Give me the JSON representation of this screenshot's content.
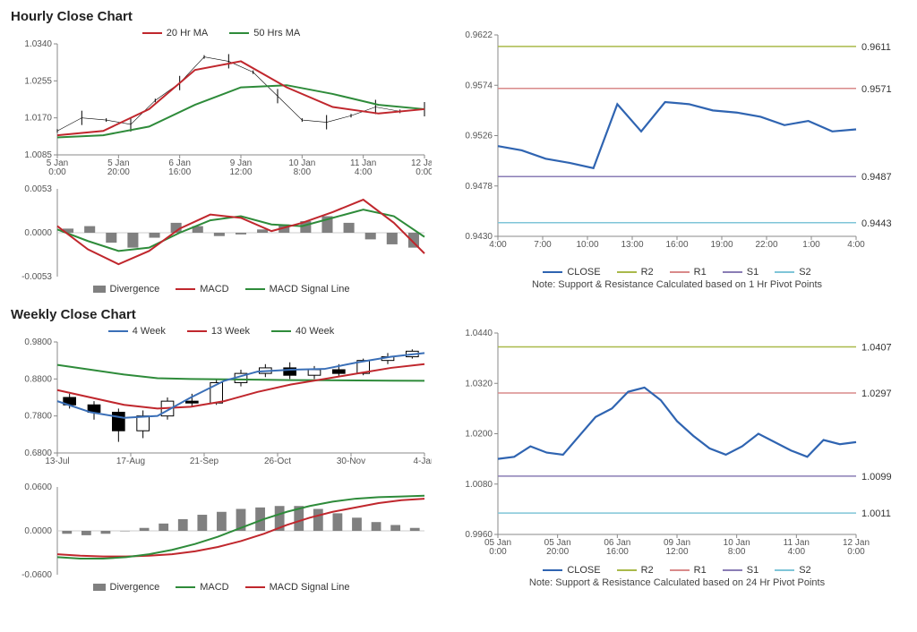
{
  "hourly": {
    "title": "Hourly Close Chart",
    "top_legend": [
      {
        "label": "20 Hr MA",
        "color": "#c0272d",
        "type": "line"
      },
      {
        "label": "50 Hrs MA",
        "color": "#2e8b3a",
        "type": "line"
      }
    ],
    "price_chart": {
      "type": "line-candle",
      "ylim": [
        1.0085,
        1.034
      ],
      "yticks": [
        1.0085,
        1.017,
        1.0255,
        1.034
      ],
      "xlabels": [
        "5 Jan\n0:00",
        "5 Jan\n20:00",
        "6 Jan\n16:00",
        "9 Jan\n12:00",
        "10 Jan\n8:00",
        "11 Jan\n4:00",
        "12 Jan\n0:00"
      ],
      "ma20_color": "#c0272d",
      "ma50_color": "#2e8b3a",
      "price_color": "#000000",
      "ma20": [
        1.013,
        1.014,
        1.019,
        1.028,
        1.03,
        1.024,
        1.0195,
        1.018,
        1.019
      ],
      "ma50": [
        1.0125,
        1.013,
        1.015,
        1.02,
        1.024,
        1.0245,
        1.0225,
        1.02,
        1.019
      ],
      "price_pts": [
        1.014,
        1.017,
        1.0165,
        1.0155,
        1.021,
        1.025,
        1.031,
        1.03,
        1.0275,
        1.022,
        1.0165,
        1.016,
        1.0175,
        1.0195,
        1.0185,
        1.019
      ]
    },
    "macd": {
      "type": "macd",
      "ylim": [
        -0.0053,
        0.0053
      ],
      "yticks": [
        -0.0053,
        0.0,
        0.0053
      ],
      "div_color": "#808080",
      "macd_color": "#c0272d",
      "signal_color": "#2e8b3a",
      "divergence": [
        0.0005,
        0.0008,
        -0.0012,
        -0.0018,
        -0.0006,
        0.0012,
        0.0008,
        -0.0004,
        -0.0002,
        0.0004,
        0.001,
        0.0014,
        0.002,
        0.0012,
        -0.0008,
        -0.0014,
        -0.0018
      ],
      "macd": [
        0.0008,
        -0.002,
        -0.0038,
        -0.0022,
        0.0005,
        0.0022,
        0.0018,
        0.0002,
        0.0012,
        0.0025,
        0.004,
        0.0012,
        -0.0025
      ],
      "signal": [
        0.0004,
        -0.001,
        -0.0022,
        -0.0018,
        0.0,
        0.0015,
        0.002,
        0.001,
        0.0008,
        0.0018,
        0.0028,
        0.002,
        -0.0005
      ],
      "legend": [
        {
          "label": "Divergence",
          "color": "#808080",
          "type": "box"
        },
        {
          "label": "MACD",
          "color": "#c0272d",
          "type": "line"
        },
        {
          "label": "MACD Signal Line",
          "color": "#2e8b3a",
          "type": "line"
        }
      ]
    },
    "sr_chart": {
      "type": "line-sr",
      "ylim": [
        0.943,
        0.9622
      ],
      "yticks": [
        0.943,
        0.9478,
        0.9526,
        0.9574,
        0.9622
      ],
      "xlabels": [
        "4:00",
        "7:00",
        "10:00",
        "13:00",
        "16:00",
        "19:00",
        "22:00",
        "1:00",
        "4:00"
      ],
      "close_color": "#2f64b1",
      "r2": {
        "val": 0.9611,
        "color": "#a9b94a"
      },
      "r1": {
        "val": 0.9571,
        "color": "#d98a8a"
      },
      "s1": {
        "val": 0.9487,
        "color": "#8a7db5"
      },
      "s2": {
        "val": 0.9443,
        "color": "#7fc5d8"
      },
      "close": [
        0.9516,
        0.9512,
        0.9504,
        0.95,
        0.9495,
        0.9556,
        0.953,
        0.9558,
        0.9556,
        0.955,
        0.9548,
        0.9544,
        0.9536,
        0.954,
        0.953,
        0.9532
      ],
      "legend": [
        {
          "label": "CLOSE",
          "color": "#2f64b1",
          "type": "line"
        },
        {
          "label": "R2",
          "color": "#a9b94a",
          "type": "line"
        },
        {
          "label": "R1",
          "color": "#d98a8a",
          "type": "line"
        },
        {
          "label": "S1",
          "color": "#8a7db5",
          "type": "line"
        },
        {
          "label": "S2",
          "color": "#7fc5d8",
          "type": "line"
        }
      ],
      "note": "Note: Support & Resistance Calculated based on 1 Hr Pivot Points"
    }
  },
  "weekly": {
    "title": "Weekly Close Chart",
    "top_legend": [
      {
        "label": "4 Week",
        "color": "#3a6fb7",
        "type": "line"
      },
      {
        "label": "13 Week",
        "color": "#c0272d",
        "type": "line"
      },
      {
        "label": "40 Week",
        "color": "#2e8b3a",
        "type": "line"
      }
    ],
    "price_chart": {
      "type": "candle-ma",
      "ylim": [
        0.68,
        0.98
      ],
      "yticks": [
        0.68,
        0.78,
        0.88,
        0.98
      ],
      "xlabels": [
        "13-Jul",
        "17-Aug",
        "21-Sep",
        "26-Oct",
        "30-Nov",
        "4-Jan"
      ],
      "ma4_color": "#3a6fb7",
      "ma13_color": "#c0272d",
      "ma40_color": "#2e8b3a",
      "candle_color": "#000000",
      "ma4": [
        0.82,
        0.79,
        0.775,
        0.78,
        0.83,
        0.875,
        0.9,
        0.905,
        0.907,
        0.925,
        0.94,
        0.95
      ],
      "ma13": [
        0.85,
        0.83,
        0.81,
        0.8,
        0.805,
        0.82,
        0.845,
        0.865,
        0.88,
        0.895,
        0.91,
        0.92
      ],
      "ma40": [
        0.918,
        0.905,
        0.892,
        0.882,
        0.88,
        0.879,
        0.878,
        0.877,
        0.8765,
        0.876,
        0.8755,
        0.875
      ],
      "candles": [
        {
          "o": 0.83,
          "c": 0.81,
          "h": 0.84,
          "l": 0.8
        },
        {
          "o": 0.81,
          "c": 0.79,
          "h": 0.82,
          "l": 0.77
        },
        {
          "o": 0.79,
          "c": 0.74,
          "h": 0.8,
          "l": 0.71
        },
        {
          "o": 0.74,
          "c": 0.78,
          "h": 0.795,
          "l": 0.72
        },
        {
          "o": 0.78,
          "c": 0.82,
          "h": 0.83,
          "l": 0.77
        },
        {
          "o": 0.82,
          "c": 0.815,
          "h": 0.84,
          "l": 0.805
        },
        {
          "o": 0.815,
          "c": 0.87,
          "h": 0.88,
          "l": 0.81
        },
        {
          "o": 0.87,
          "c": 0.895,
          "h": 0.905,
          "l": 0.86
        },
        {
          "o": 0.895,
          "c": 0.91,
          "h": 0.92,
          "l": 0.885
        },
        {
          "o": 0.91,
          "c": 0.89,
          "h": 0.925,
          "l": 0.88
        },
        {
          "o": 0.89,
          "c": 0.905,
          "h": 0.915,
          "l": 0.88
        },
        {
          "o": 0.905,
          "c": 0.895,
          "h": 0.92,
          "l": 0.885
        },
        {
          "o": 0.895,
          "c": 0.93,
          "h": 0.935,
          "l": 0.89
        },
        {
          "o": 0.93,
          "c": 0.94,
          "h": 0.95,
          "l": 0.92
        },
        {
          "o": 0.94,
          "c": 0.955,
          "h": 0.96,
          "l": 0.935
        }
      ]
    },
    "macd": {
      "type": "macd",
      "ylim": [
        -0.06,
        0.06
      ],
      "yticks": [
        -0.06,
        0.0,
        0.06
      ],
      "div_color": "#808080",
      "macd_color": "#2e8b3a",
      "signal_color": "#c0272d",
      "divergence": [
        -0.004,
        -0.006,
        -0.004,
        0.0,
        0.004,
        0.01,
        0.016,
        0.022,
        0.026,
        0.03,
        0.032,
        0.034,
        0.034,
        0.03,
        0.024,
        0.018,
        0.012,
        0.008,
        0.004
      ],
      "macd": [
        -0.036,
        -0.038,
        -0.038,
        -0.036,
        -0.032,
        -0.026,
        -0.018,
        -0.008,
        0.004,
        0.016,
        0.026,
        0.034,
        0.04,
        0.044,
        0.046,
        0.047,
        0.048
      ],
      "signal": [
        -0.032,
        -0.034,
        -0.035,
        -0.035,
        -0.034,
        -0.032,
        -0.028,
        -0.022,
        -0.014,
        -0.004,
        0.008,
        0.018,
        0.026,
        0.032,
        0.038,
        0.042,
        0.044
      ],
      "legend": [
        {
          "label": "Divergence",
          "color": "#808080",
          "type": "box"
        },
        {
          "label": "MACD",
          "color": "#2e8b3a",
          "type": "line"
        },
        {
          "label": "MACD Signal Line",
          "color": "#c0272d",
          "type": "line"
        }
      ]
    },
    "sr_chart": {
      "type": "line-sr",
      "ylim": [
        0.996,
        1.044
      ],
      "yticks": [
        0.996,
        1.008,
        1.02,
        1.032,
        1.044
      ],
      "xlabels": [
        "05 Jan\n0:00",
        "05 Jan\n20:00",
        "06 Jan\n16:00",
        "09 Jan\n12:00",
        "10 Jan\n8:00",
        "11 Jan\n4:00",
        "12 Jan\n0:00"
      ],
      "close_color": "#2f64b1",
      "r2": {
        "val": 1.0407,
        "color": "#a9b94a"
      },
      "r1": {
        "val": 1.0297,
        "color": "#d98a8a"
      },
      "s1": {
        "val": 1.0099,
        "color": "#8a7db5"
      },
      "s2": {
        "val": 1.0011,
        "color": "#7fc5d8"
      },
      "close": [
        1.014,
        1.0145,
        1.017,
        1.0155,
        1.015,
        1.0195,
        1.024,
        1.026,
        1.03,
        1.031,
        1.028,
        1.023,
        1.0195,
        1.0165,
        1.015,
        1.017,
        1.02,
        1.018,
        1.016,
        1.0145,
        1.0185,
        1.0175,
        1.018
      ],
      "legend": [
        {
          "label": "CLOSE",
          "color": "#2f64b1",
          "type": "line"
        },
        {
          "label": "R2",
          "color": "#a9b94a",
          "type": "line"
        },
        {
          "label": "R1",
          "color": "#d98a8a",
          "type": "line"
        },
        {
          "label": "S1",
          "color": "#8a7db5",
          "type": "line"
        },
        {
          "label": "S2",
          "color": "#7fc5d8",
          "type": "line"
        }
      ],
      "note": "Note: Support & Resistance Calculated based on 24 Hr Pivot Points"
    }
  },
  "style": {
    "axis_color": "#888888",
    "tick_font": 10,
    "bg": "#ffffff"
  }
}
